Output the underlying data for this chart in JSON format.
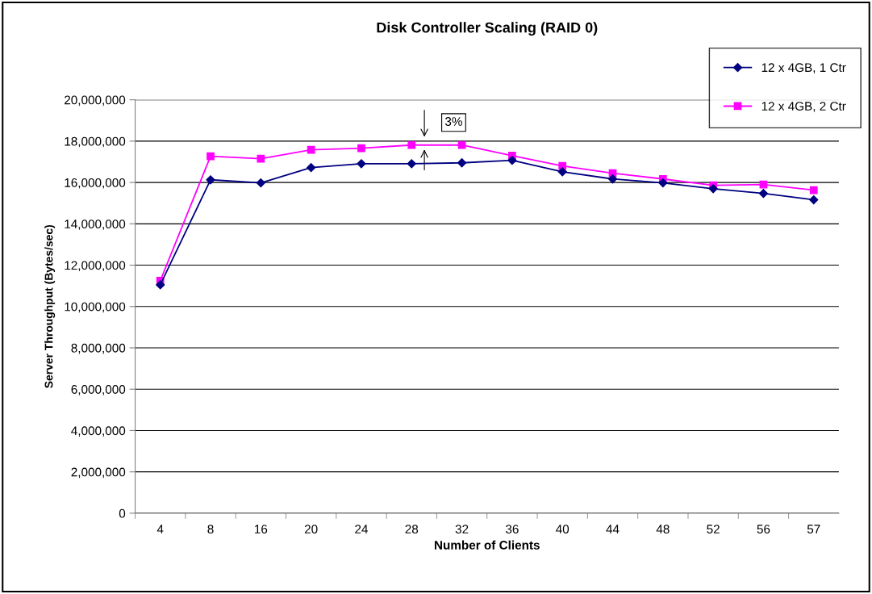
{
  "chart_data": {
    "type": "line",
    "title": "Disk Controller Scaling (RAID 0)",
    "xlabel": "Number of Clients",
    "ylabel": "Server Throughput (Bytes/sec)",
    "categories": [
      "4",
      "8",
      "16",
      "20",
      "24",
      "28",
      "32",
      "36",
      "40",
      "44",
      "48",
      "52",
      "56",
      "57"
    ],
    "series": [
      {
        "name": "12 x 4GB, 1 Ctr",
        "color": "#000080",
        "marker": "diamond",
        "values": [
          11050000,
          16130000,
          15980000,
          16720000,
          16910000,
          16910000,
          16950000,
          17070000,
          16520000,
          16170000,
          15980000,
          15700000,
          15470000,
          15160000
        ]
      },
      {
        "name": "12 x 4GB, 2 Ctr",
        "color": "#ff00ff",
        "marker": "square",
        "values": [
          11250000,
          17270000,
          17150000,
          17580000,
          17660000,
          17810000,
          17810000,
          17300000,
          16800000,
          16450000,
          16170000,
          15860000,
          15900000,
          15630000
        ]
      }
    ],
    "ylim": [
      0,
      20000000
    ],
    "yticks": [
      {
        "value": 0,
        "label": "0"
      },
      {
        "value": 2000000,
        "label": "2,000,000"
      },
      {
        "value": 4000000,
        "label": "4,000,000"
      },
      {
        "value": 6000000,
        "label": "6,000,000"
      },
      {
        "value": 8000000,
        "label": "8,000,000"
      },
      {
        "value": 10000000,
        "label": "10,000,000"
      },
      {
        "value": 12000000,
        "label": "12,000,000"
      },
      {
        "value": 14000000,
        "label": "14,000,000"
      },
      {
        "value": 16000000,
        "label": "16,000,000"
      },
      {
        "value": 18000000,
        "label": "18,000,000"
      },
      {
        "value": 20000000,
        "label": "20,000,000"
      }
    ],
    "grid": "y",
    "legend": "top right",
    "line_style": "solid",
    "annotations": [
      "3%"
    ]
  }
}
